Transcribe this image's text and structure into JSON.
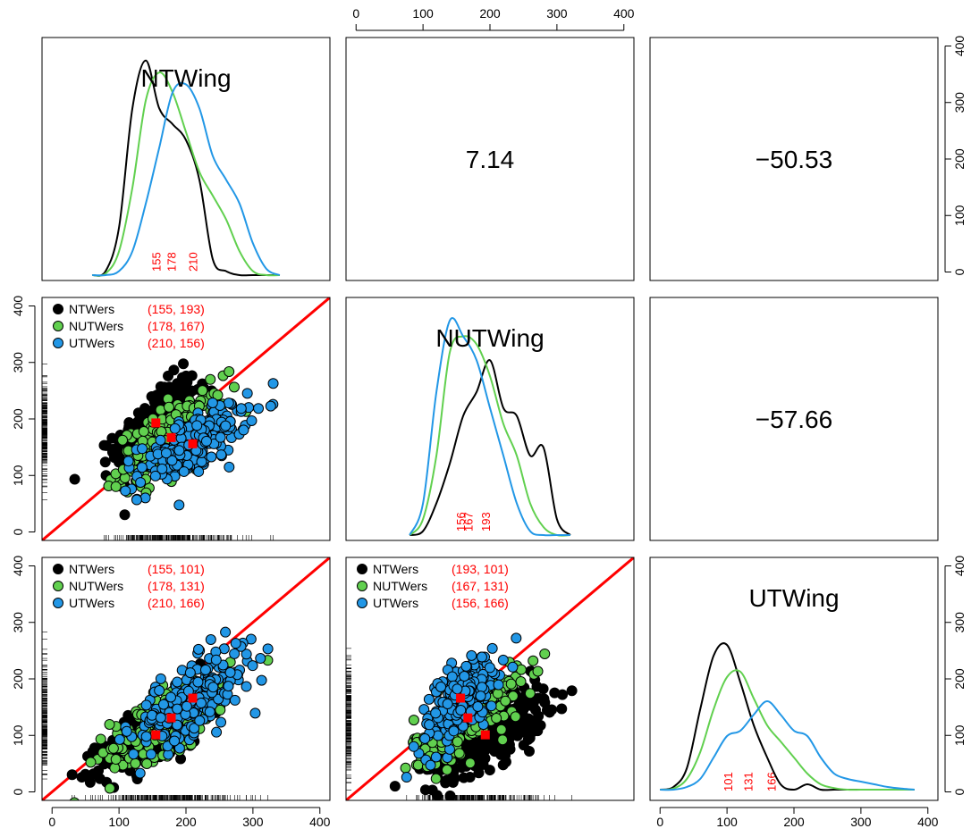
{
  "colors": {
    "NTWers": "#000000",
    "NUTWers": "#61d04f",
    "UTWers": "#2297e6",
    "accent": "#ff0000",
    "frame": "#000000"
  },
  "axis_ticks": [
    0,
    100,
    200,
    300,
    400
  ],
  "chart_data": [
    {
      "type": "line",
      "panel": "diag-1",
      "title": "NTWing",
      "x": [
        60,
        80,
        100,
        120,
        140,
        160,
        180,
        200,
        220,
        240,
        260,
        280,
        300,
        320,
        340
      ],
      "series": [
        {
          "name": "NTWers",
          "values": [
            0,
            5,
            60,
            210,
            270,
            210,
            190,
            170,
            120,
            20,
            5,
            0,
            0,
            0,
            0
          ]
        },
        {
          "name": "NUTWers",
          "values": [
            0,
            2,
            30,
            110,
            220,
            255,
            230,
            180,
            130,
            100,
            70,
            30,
            5,
            0,
            0
          ]
        },
        {
          "name": "UTWers",
          "values": [
            0,
            0,
            5,
            30,
            90,
            160,
            230,
            240,
            210,
            150,
            120,
            90,
            40,
            8,
            0
          ]
        }
      ],
      "means": [
        "155",
        "178",
        "210"
      ],
      "mean_values": [
        155,
        178,
        210
      ],
      "xlim": [
        -5,
        405
      ],
      "ylim": [
        0,
        290
      ]
    },
    {
      "type": "table",
      "panel": "upper-1-2",
      "value": "7.14"
    },
    {
      "type": "table",
      "panel": "upper-1-3",
      "value": "−50.53"
    },
    {
      "type": "scatter",
      "panel": "lower-2-1",
      "legend": [
        {
          "name": "NTWers",
          "mean": "(155, 193)"
        },
        {
          "name": "NUTWers",
          "mean": "(178, 167)"
        },
        {
          "name": "UTWers",
          "mean": "(210, 156)"
        }
      ],
      "means": [
        [
          155,
          193
        ],
        [
          178,
          167
        ],
        [
          210,
          156
        ]
      ],
      "point_clouds": [
        {
          "name": "NTWers",
          "center": [
            155,
            193
          ],
          "spread": [
            30,
            40
          ],
          "count": 320
        },
        {
          "name": "NUTWers",
          "center": [
            178,
            167
          ],
          "spread": [
            40,
            40
          ],
          "count": 220
        },
        {
          "name": "UTWers",
          "center": [
            210,
            156
          ],
          "spread": [
            40,
            35
          ],
          "count": 220
        }
      ],
      "xlim": [
        -15,
        415
      ],
      "ylim": [
        -15,
        415
      ],
      "reference_line": "y = x"
    },
    {
      "type": "line",
      "panel": "diag-2",
      "title": "NUTWing",
      "x": [
        80,
        100,
        120,
        140,
        160,
        180,
        200,
        220,
        240,
        260,
        280,
        300,
        320
      ],
      "series": [
        {
          "name": "NTWers",
          "values": [
            0,
            5,
            40,
            90,
            150,
            180,
            220,
            160,
            150,
            100,
            110,
            20,
            0
          ]
        },
        {
          "name": "NUTWers",
          "values": [
            0,
            20,
            100,
            230,
            250,
            240,
            200,
            140,
            100,
            40,
            10,
            0,
            0
          ]
        },
        {
          "name": "UTWers",
          "values": [
            0,
            40,
            180,
            270,
            250,
            220,
            160,
            100,
            40,
            5,
            0,
            0,
            0
          ]
        }
      ],
      "means": [
        "156",
        "167",
        "193"
      ],
      "mean_values": [
        156,
        167,
        193
      ],
      "xlim": [
        -15,
        415
      ],
      "ylim": [
        0,
        290
      ]
    },
    {
      "type": "table",
      "panel": "upper-2-3",
      "value": "−57.66"
    },
    {
      "type": "scatter",
      "panel": "lower-3-1",
      "legend": [
        {
          "name": "NTWers",
          "mean": "(155, 101)"
        },
        {
          "name": "NUTWers",
          "mean": "(178, 131)"
        },
        {
          "name": "UTWers",
          "mean": "(210, 166)"
        }
      ],
      "means": [
        [
          155,
          101
        ],
        [
          178,
          131
        ],
        [
          210,
          166
        ]
      ],
      "point_clouds": [
        {
          "name": "NTWers",
          "center": [
            155,
            101
          ],
          "spread": [
            40,
            35
          ],
          "count": 300
        },
        {
          "name": "NUTWers",
          "center": [
            178,
            131
          ],
          "spread": [
            45,
            40
          ],
          "count": 220
        },
        {
          "name": "UTWers",
          "center": [
            210,
            166
          ],
          "spread": [
            45,
            45
          ],
          "count": 220
        }
      ],
      "xlim": [
        -15,
        415
      ],
      "ylim": [
        -15,
        415
      ],
      "reference_line": "y = x"
    },
    {
      "type": "scatter",
      "panel": "lower-3-2",
      "legend": [
        {
          "name": "NTWers",
          "mean": "(193, 101)"
        },
        {
          "name": "NUTWers",
          "mean": "(167, 131)"
        },
        {
          "name": "UTWers",
          "mean": "(156, 166)"
        }
      ],
      "means": [
        [
          193,
          101
        ],
        [
          167,
          131
        ],
        [
          156,
          166
        ]
      ],
      "point_clouds": [
        {
          "name": "NTWers",
          "center": [
            193,
            101
          ],
          "spread": [
            45,
            40
          ],
          "count": 320
        },
        {
          "name": "NUTWers",
          "center": [
            167,
            131
          ],
          "spread": [
            40,
            40
          ],
          "count": 220
        },
        {
          "name": "UTWers",
          "center": [
            156,
            166
          ],
          "spread": [
            30,
            45
          ],
          "count": 220
        }
      ],
      "xlim": [
        -15,
        415
      ],
      "ylim": [
        -15,
        415
      ],
      "reference_line": "y = x"
    },
    {
      "type": "line",
      "panel": "diag-3",
      "title": "UTWing",
      "x": [
        0,
        20,
        40,
        60,
        80,
        100,
        120,
        140,
        160,
        180,
        200,
        220,
        240,
        260,
        280,
        300,
        320,
        340,
        360,
        380
      ],
      "series": [
        {
          "name": "NTWers",
          "values": [
            0,
            5,
            40,
            150,
            250,
            270,
            200,
            120,
            60,
            10,
            0,
            10,
            0,
            0,
            0,
            0,
            0,
            0,
            0,
            0
          ]
        },
        {
          "name": "NUTWers",
          "values": [
            0,
            2,
            20,
            70,
            150,
            210,
            220,
            170,
            120,
            90,
            60,
            30,
            10,
            3,
            0,
            0,
            0,
            0,
            0,
            0
          ]
        },
        {
          "name": "UTWers",
          "values": [
            0,
            0,
            5,
            20,
            60,
            100,
            110,
            140,
            165,
            140,
            110,
            100,
            60,
            30,
            20,
            15,
            10,
            5,
            2,
            0
          ]
        }
      ],
      "means": [
        "101",
        "131",
        "166"
      ],
      "mean_values": [
        101,
        131,
        166
      ],
      "xlim": [
        -15,
        415
      ],
      "ylim": [
        -10,
        420
      ]
    }
  ]
}
